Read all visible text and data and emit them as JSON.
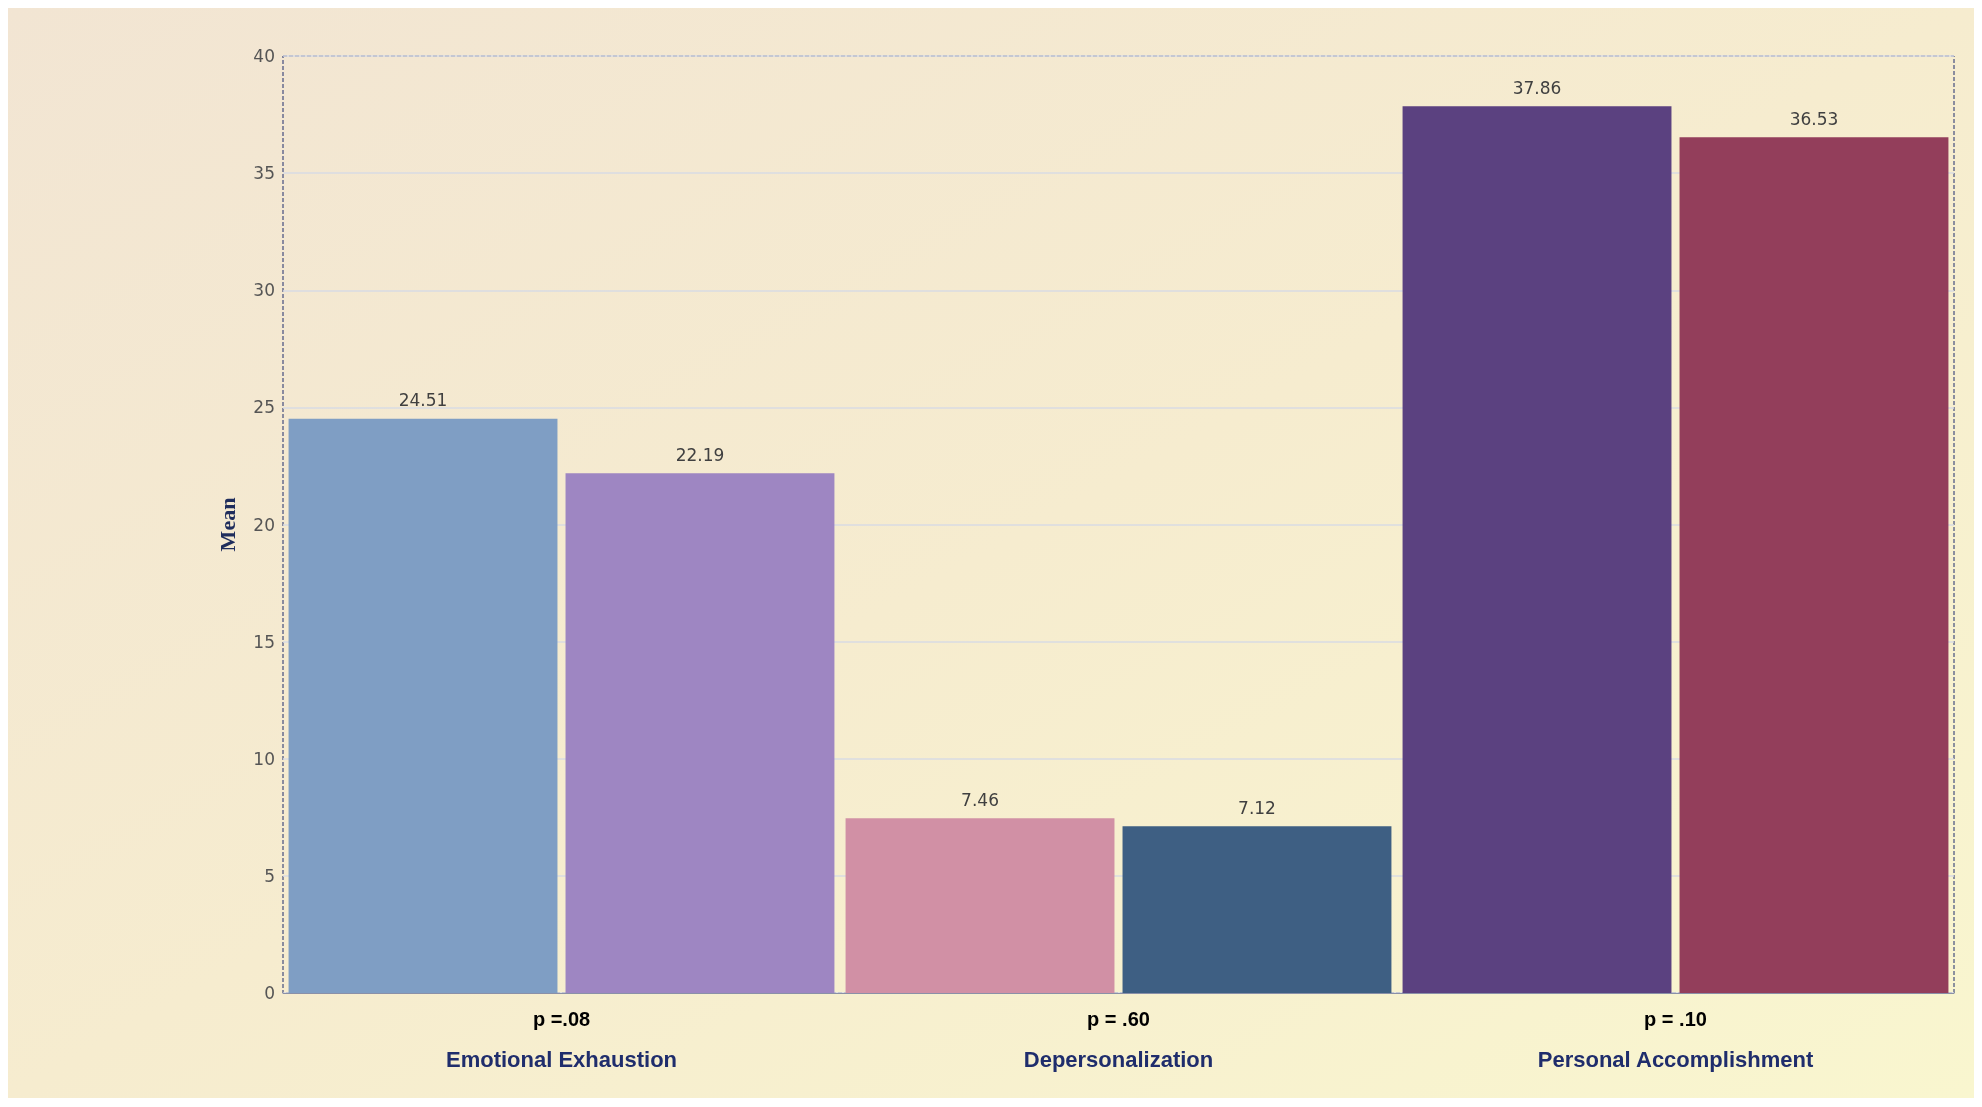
{
  "chart_data": {
    "type": "bar",
    "ylabel": "Mean",
    "categories": [
      "Emotional Exhaustion",
      "Depersonalization",
      "Personal Accomplishment"
    ],
    "series": [
      {
        "colors": [
          "#7f9ec4",
          "#d190a5",
          "#5b4180"
        ],
        "values": [
          24.51,
          7.46,
          37.86
        ]
      },
      {
        "colors": [
          "#9e86c2",
          "#3e5f83",
          "#933e5b"
        ],
        "values": [
          22.19,
          7.12,
          36.53
        ]
      }
    ],
    "ylim": [
      0,
      40
    ],
    "yticks": [
      0,
      5,
      10,
      15,
      20,
      25,
      30,
      35,
      40
    ],
    "grid": "y",
    "data_labels": true,
    "annotations": [
      "p =.08",
      "p = .60",
      "p = .10"
    ]
  }
}
